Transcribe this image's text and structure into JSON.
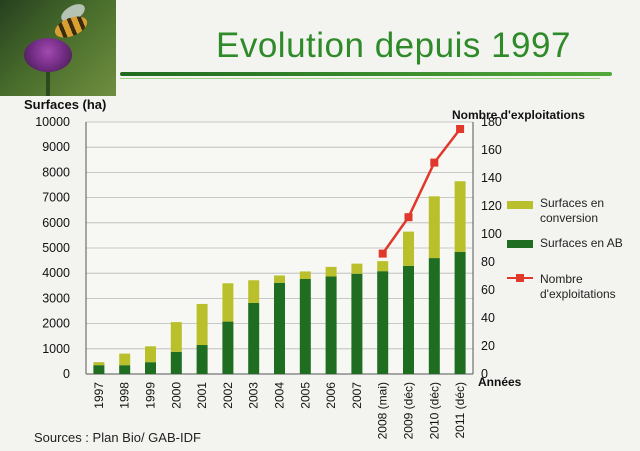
{
  "header": {
    "title": "Evolution depuis 1997"
  },
  "source_note": "Sources : Plan Bio/ GAB-IDF",
  "chart_data": {
    "type": "bar",
    "stacked": true,
    "categories": [
      "1997",
      "1998",
      "1999",
      "2000",
      "2001",
      "2002",
      "2003",
      "2004",
      "2005",
      "2006",
      "2007",
      "2008 (mai)",
      "2009 (déc)",
      "2010 (déc)",
      "2011 (déc)"
    ],
    "series": [
      {
        "name": "Surfaces en AB",
        "axis": "left",
        "color": "#1f6d20",
        "values": [
          350,
          350,
          470,
          880,
          1150,
          2080,
          2820,
          3620,
          3770,
          3870,
          3980,
          4080,
          4290,
          4600,
          4850
        ]
      },
      {
        "name": "Surfaces en conversion",
        "axis": "left",
        "color": "#b9c02c",
        "values": [
          120,
          460,
          630,
          1180,
          1630,
          1520,
          900,
          290,
          300,
          380,
          400,
          400,
          1360,
          2450,
          2800
        ]
      },
      {
        "name": "Nombre d'exploitations",
        "type": "line",
        "axis": "right",
        "color": "#e0382b",
        "start_index": 11,
        "values": [
          null,
          null,
          null,
          null,
          null,
          null,
          null,
          null,
          null,
          null,
          null,
          86,
          112,
          151,
          175
        ]
      }
    ],
    "ylabel": "Surfaces (ha)",
    "y2label": "Nombre d'exploitations",
    "xlabel": "Années",
    "ylim": [
      0,
      10000
    ],
    "y2lim": [
      0,
      180
    ],
    "yticks": [
      "0",
      "1000",
      "2000",
      "3000",
      "4000",
      "5000",
      "6000",
      "7000",
      "8000",
      "9000",
      "10000"
    ],
    "y2ticks": [
      "0",
      "20",
      "40",
      "60",
      "80",
      "100",
      "120",
      "140",
      "160",
      "180"
    ],
    "grid": true,
    "legend": {
      "position": "right",
      "entries": [
        "Surfaces en conversion",
        "Surfaces en AB",
        "Nombre d'exploitations"
      ]
    }
  }
}
